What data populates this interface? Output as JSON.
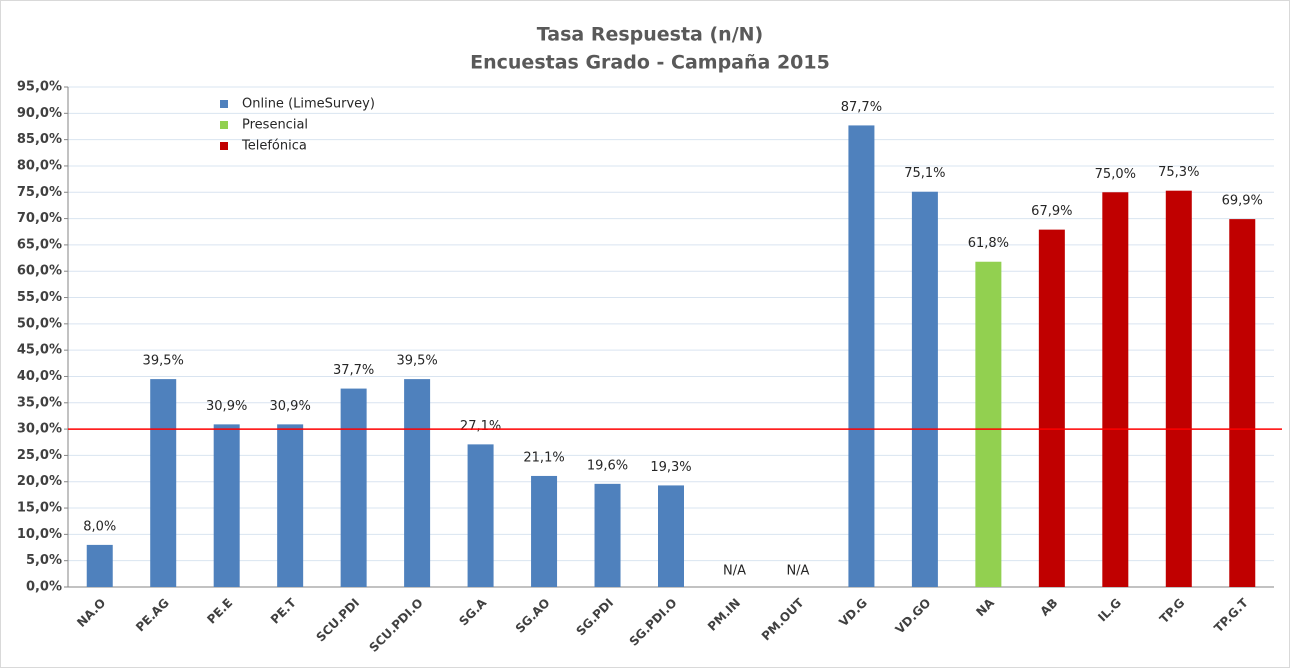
{
  "chart_data": {
    "type": "bar",
    "title": "Tasa Respuesta (n/N)",
    "subtitle": "Encuestas Grado - Campaña 2015",
    "categories": [
      "NA.O",
      "PE.AG",
      "PE.E",
      "PE.T",
      "SCU.PDI",
      "SCU.PDI.O",
      "SG.A",
      "SG.AO",
      "SG.PDI",
      "SG.PDI.O",
      "PM.IN",
      "PM.OUT",
      "VD.G",
      "VD.GO",
      "NA",
      "AB",
      "IL.G",
      "TP.G",
      "TP.G.T"
    ],
    "series": [
      {
        "name": "Online (LimeSurvey)",
        "color": "#4f81bd",
        "values": [
          8.0,
          39.5,
          30.9,
          30.9,
          37.7,
          39.5,
          27.1,
          21.1,
          19.6,
          19.3,
          null,
          null,
          87.7,
          75.1,
          null,
          null,
          null,
          null,
          null
        ],
        "value_labels": [
          "8,0%",
          "39,5%",
          "30,9%",
          "30,9%",
          "37,7%",
          "39,5%",
          "27,1%",
          "21,1%",
          "19,6%",
          "19,3%",
          "N/A",
          "N/A",
          "87,7%",
          "75,1%",
          null,
          null,
          null,
          null,
          null
        ]
      },
      {
        "name": "Presencial",
        "color": "#92d050",
        "values": [
          null,
          null,
          null,
          null,
          null,
          null,
          null,
          null,
          null,
          null,
          null,
          null,
          null,
          null,
          61.8,
          null,
          null,
          null,
          null
        ],
        "value_labels": [
          null,
          null,
          null,
          null,
          null,
          null,
          null,
          null,
          null,
          null,
          null,
          null,
          null,
          null,
          "61,8%",
          null,
          null,
          null,
          null
        ]
      },
      {
        "name": "Telefónica",
        "color": "#c00000",
        "values": [
          null,
          null,
          null,
          null,
          null,
          null,
          null,
          null,
          null,
          null,
          null,
          null,
          null,
          null,
          null,
          67.9,
          75.0,
          75.3,
          69.9
        ],
        "value_labels": [
          null,
          null,
          null,
          null,
          null,
          null,
          null,
          null,
          null,
          null,
          null,
          null,
          null,
          null,
          null,
          "67,9%",
          "75,0%",
          "75,3%",
          "69,9%"
        ]
      }
    ],
    "ylim": [
      0,
      95
    ],
    "yticks": [
      {
        "value": 0,
        "label": "0,0%"
      },
      {
        "value": 5,
        "label": "5,0%"
      },
      {
        "value": 10,
        "label": "10,0%"
      },
      {
        "value": 15,
        "label": "15,0%"
      },
      {
        "value": 20,
        "label": "20,0%"
      },
      {
        "value": 25,
        "label": "25,0%"
      },
      {
        "value": 30,
        "label": "30,0%"
      },
      {
        "value": 35,
        "label": "35,0%"
      },
      {
        "value": 40,
        "label": "40,0%"
      },
      {
        "value": 45,
        "label": "45,0%"
      },
      {
        "value": 50,
        "label": "50,0%"
      },
      {
        "value": 55,
        "label": "55,0%"
      },
      {
        "value": 60,
        "label": "60,0%"
      },
      {
        "value": 65,
        "label": "65,0%"
      },
      {
        "value": 70,
        "label": "70,0%"
      },
      {
        "value": 75,
        "label": "75,0%"
      },
      {
        "value": 80,
        "label": "80,0%"
      },
      {
        "value": 85,
        "label": "85,0%"
      },
      {
        "value": 90,
        "label": "90,0%"
      },
      {
        "value": 95,
        "label": "95,0%"
      }
    ],
    "grid": true,
    "legend": "top-left",
    "reference_line": {
      "value": 30,
      "color": "#ff0000"
    }
  }
}
